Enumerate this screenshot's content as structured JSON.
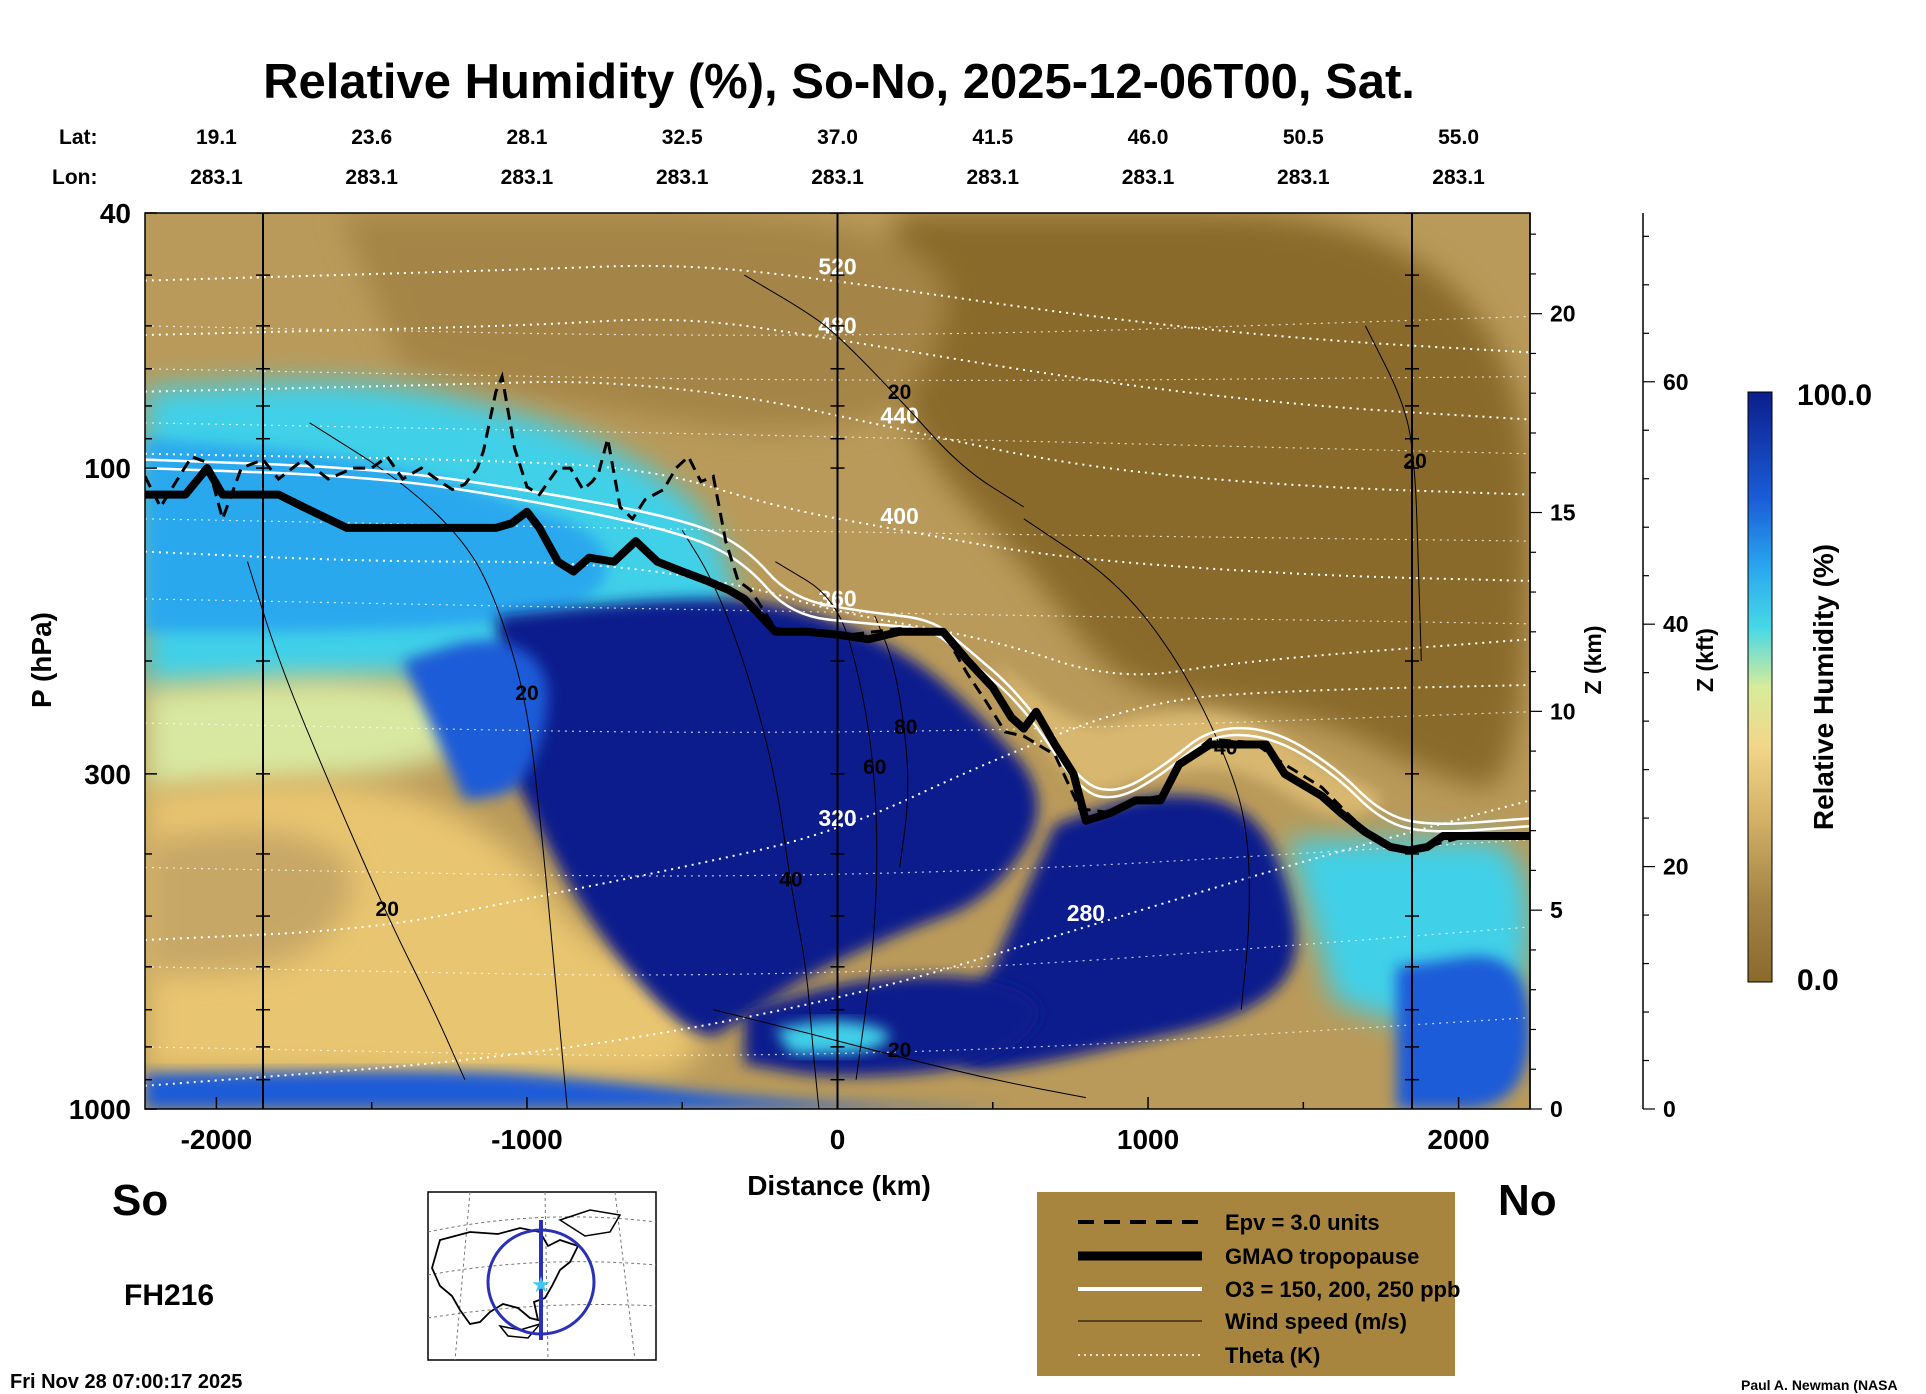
{
  "chart_data": {
    "type": "heatmap",
    "title": "Relative Humidity (%), So-No, 2025-12-06T00, Sat.",
    "xlabel": "Distance (km)",
    "ylabel": "P (hPa)",
    "ylabel_right_km": "Z (km)",
    "ylabel_right_kft": "Z (kft)",
    "xlim": [
      -2230,
      2230
    ],
    "ylim": [
      1000,
      40
    ],
    "y_scale": "log",
    "x_ticks": [
      -2000,
      -1000,
      0,
      1000,
      2000
    ],
    "y_ticks": [
      40,
      100,
      300,
      1000
    ],
    "z_km_ticks": [
      0,
      5,
      10,
      15,
      20
    ],
    "z_kft_ticks": [
      0,
      20,
      40,
      60
    ],
    "lat_label": "Lat:",
    "lon_label": "Lon:",
    "lat_lon_stations": [
      {
        "x": -2000,
        "lat": "19.1",
        "lon": "283.1"
      },
      {
        "x": -1500,
        "lat": "23.6",
        "lon": "283.1"
      },
      {
        "x": -1000,
        "lat": "28.1",
        "lon": "283.1"
      },
      {
        "x": -500,
        "lat": "32.5",
        "lon": "283.1"
      },
      {
        "x": 0,
        "lat": "37.0",
        "lon": "283.1"
      },
      {
        "x": 500,
        "lat": "41.5",
        "lon": "283.1"
      },
      {
        "x": 1000,
        "lat": "46.0",
        "lon": "283.1"
      },
      {
        "x": 1500,
        "lat": "50.5",
        "lon": "283.1"
      },
      {
        "x": 2000,
        "lat": "55.0",
        "lon": "283.1"
      }
    ],
    "vertical_markers_km": [
      -1850,
      0,
      1850
    ],
    "colorbar": {
      "label": "Relative Humidity (%)",
      "min": "0.0",
      "max": "100.0",
      "min_value": 0,
      "max_value": 100
    },
    "colors": {
      "dry": "#8a6a2c",
      "tan": "#b99a5a",
      "mid": "#e8c570",
      "pale": "#d8e8a0",
      "cyan": "#40d0e8",
      "blue": "#1a5cd8",
      "navy": "#0c1e8c",
      "legend_bg": "#a8853e",
      "ring": "#2a30b8"
    },
    "tropopause": [
      [
        -2230,
        110
      ],
      [
        -2100,
        110
      ],
      [
        -2030,
        100
      ],
      [
        -1980,
        110
      ],
      [
        -1800,
        110
      ],
      [
        -1720,
        115
      ],
      [
        -1580,
        124
      ],
      [
        -1100,
        124
      ],
      [
        -1050,
        122
      ],
      [
        -1000,
        117
      ],
      [
        -960,
        124
      ],
      [
        -900,
        140
      ],
      [
        -850,
        145
      ],
      [
        -800,
        138
      ],
      [
        -720,
        140
      ],
      [
        -650,
        130
      ],
      [
        -580,
        140
      ],
      [
        -500,
        145
      ],
      [
        -420,
        150
      ],
      [
        -350,
        155
      ],
      [
        -300,
        160
      ],
      [
        -200,
        180
      ],
      [
        -100,
        180
      ],
      [
        0,
        182
      ],
      [
        100,
        185
      ],
      [
        200,
        180
      ],
      [
        340,
        180
      ],
      [
        420,
        200
      ],
      [
        500,
        220
      ],
      [
        560,
        245
      ],
      [
        600,
        255
      ],
      [
        640,
        240
      ],
      [
        700,
        270
      ],
      [
        760,
        300
      ],
      [
        800,
        355
      ],
      [
        880,
        345
      ],
      [
        960,
        330
      ],
      [
        1040,
        330
      ],
      [
        1100,
        290
      ],
      [
        1200,
        270
      ],
      [
        1300,
        270
      ],
      [
        1380,
        270
      ],
      [
        1440,
        300
      ],
      [
        1560,
        325
      ],
      [
        1620,
        345
      ],
      [
        1700,
        370
      ],
      [
        1780,
        390
      ],
      [
        1840,
        395
      ],
      [
        1900,
        390
      ],
      [
        1950,
        375
      ],
      [
        2100,
        375
      ],
      [
        2230,
        375
      ]
    ],
    "epv_line": [
      [
        -2230,
        103
      ],
      [
        -2180,
        115
      ],
      [
        -2130,
        105
      ],
      [
        -2080,
        96
      ],
      [
        -2030,
        98
      ],
      [
        -1980,
        120
      ],
      [
        -1920,
        100
      ],
      [
        -1850,
        97
      ],
      [
        -1800,
        104
      ],
      [
        -1720,
        97
      ],
      [
        -1640,
        104
      ],
      [
        -1560,
        100
      ],
      [
        -1500,
        100
      ],
      [
        -1450,
        96
      ],
      [
        -1400,
        104
      ],
      [
        -1340,
        100
      ],
      [
        -1280,
        105
      ],
      [
        -1240,
        108
      ],
      [
        -1200,
        106
      ],
      [
        -1160,
        100
      ],
      [
        -1140,
        94
      ],
      [
        -1100,
        76
      ],
      [
        -1080,
        72
      ],
      [
        -1040,
        93
      ],
      [
        -1000,
        107
      ],
      [
        -960,
        110
      ],
      [
        -900,
        100
      ],
      [
        -860,
        100
      ],
      [
        -820,
        108
      ],
      [
        -790,
        105
      ],
      [
        -770,
        102
      ],
      [
        -740,
        90
      ],
      [
        -700,
        115
      ],
      [
        -660,
        120
      ],
      [
        -620,
        112
      ],
      [
        -560,
        108
      ],
      [
        -520,
        100
      ],
      [
        -480,
        96
      ],
      [
        -440,
        105
      ],
      [
        -400,
        103
      ],
      [
        -360,
        130
      ],
      [
        -320,
        150
      ],
      [
        -280,
        155
      ],
      [
        -200,
        178
      ],
      [
        0,
        183
      ],
      [
        200,
        178
      ],
      [
        340,
        180
      ],
      [
        420,
        210
      ],
      [
        480,
        232
      ],
      [
        540,
        258
      ],
      [
        600,
        262
      ],
      [
        700,
        280
      ],
      [
        780,
        340
      ],
      [
        880,
        345
      ],
      [
        960,
        330
      ],
      [
        1040,
        325
      ],
      [
        1100,
        290
      ],
      [
        1200,
        265
      ],
      [
        1340,
        268
      ],
      [
        1440,
        290
      ],
      [
        1560,
        315
      ],
      [
        1640,
        345
      ],
      [
        1720,
        375
      ],
      [
        1800,
        390
      ],
      [
        1880,
        392
      ],
      [
        2000,
        378
      ],
      [
        2230,
        378
      ]
    ],
    "theta_lines": [
      {
        "label": "280",
        "pts": [
          [
            -2230,
            920
          ],
          [
            -1000,
            830
          ],
          [
            0,
            680
          ],
          [
            800,
            520
          ],
          [
            1500,
            410
          ],
          [
            2230,
            330
          ]
        ]
      },
      {
        "label": "320",
        "pts": [
          [
            -2230,
            545
          ],
          [
            -1500,
            525
          ],
          [
            -1000,
            470
          ],
          [
            -500,
            420
          ],
          [
            0,
            370
          ],
          [
            500,
            285
          ],
          [
            1000,
            230
          ],
          [
            1500,
            222
          ],
          [
            2230,
            218
          ]
        ]
      },
      {
        "label": "360",
        "pts": [
          [
            -2230,
            135
          ],
          [
            -1500,
            140
          ],
          [
            -800,
            140
          ],
          [
            -300,
            152
          ],
          [
            0,
            168
          ],
          [
            500,
            185
          ],
          [
            900,
            215
          ],
          [
            1300,
            200
          ],
          [
            2230,
            185
          ]
        ]
      },
      {
        "label": "400",
        "pts": [
          [
            -2230,
            95
          ],
          [
            -1200,
            97
          ],
          [
            -600,
            100
          ],
          [
            -200,
            115
          ],
          [
            200,
            125
          ],
          [
            700,
            138
          ],
          [
            1500,
            147
          ],
          [
            2230,
            150
          ]
        ]
      },
      {
        "label": "440",
        "pts": [
          [
            -2230,
            76
          ],
          [
            -1200,
            74
          ],
          [
            -800,
            73
          ],
          [
            -300,
            77
          ],
          [
            200,
            87
          ],
          [
            800,
            100
          ],
          [
            1500,
            107
          ],
          [
            2230,
            110
          ]
        ]
      },
      {
        "label": "480",
        "pts": [
          [
            -2230,
            62
          ],
          [
            -1000,
            60
          ],
          [
            -500,
            58
          ],
          [
            0,
            63
          ],
          [
            800,
            73
          ],
          [
            1500,
            80
          ],
          [
            2230,
            84
          ]
        ]
      },
      {
        "label": "520",
        "pts": [
          [
            -2230,
            51
          ],
          [
            -1000,
            49
          ],
          [
            -500,
            48
          ],
          [
            0,
            51
          ],
          [
            800,
            58
          ],
          [
            1500,
            63
          ],
          [
            2230,
            66
          ]
        ]
      }
    ],
    "wind_contours": [
      {
        "label": "20",
        "pts": [
          [
            -1700,
            85
          ],
          [
            -1400,
            105
          ],
          [
            -1200,
            130
          ],
          [
            -1100,
            160
          ],
          [
            -1000,
            230
          ],
          [
            -950,
            380
          ],
          [
            -900,
            700
          ],
          [
            -870,
            1000
          ]
        ]
      },
      {
        "label": "20",
        "pts": [
          [
            -300,
            50
          ],
          [
            -100,
            57
          ],
          [
            0,
            62
          ],
          [
            200,
            78
          ],
          [
            400,
            100
          ],
          [
            600,
            115
          ]
        ]
      },
      {
        "label": "40",
        "pts": [
          [
            -500,
            125
          ],
          [
            -400,
            150
          ],
          [
            -300,
            200
          ],
          [
            -200,
            300
          ],
          [
            -150,
            450
          ],
          [
            -100,
            600
          ],
          [
            -80,
            800
          ],
          [
            -60,
            1000
          ]
        ]
      },
      {
        "label": "60",
        "pts": [
          [
            -200,
            140
          ],
          [
            0,
            160
          ],
          [
            80,
            220
          ],
          [
            120,
            300
          ],
          [
            130,
            420
          ],
          [
            110,
            600
          ],
          [
            60,
            900
          ]
        ]
      },
      {
        "label": "80",
        "pts": [
          [
            120,
            170
          ],
          [
            180,
            200
          ],
          [
            220,
            260
          ],
          [
            230,
            330
          ],
          [
            200,
            420
          ]
        ]
      },
      {
        "label": "40",
        "pts": [
          [
            600,
            120
          ],
          [
            900,
            150
          ],
          [
            1100,
            200
          ],
          [
            1250,
            280
          ],
          [
            1320,
            360
          ],
          [
            1330,
            500
          ],
          [
            1300,
            700
          ]
        ]
      },
      {
        "label": "20",
        "pts": [
          [
            -1900,
            140
          ],
          [
            -1800,
            200
          ],
          [
            -1650,
            300
          ],
          [
            -1450,
            500
          ],
          [
            -1300,
            700
          ],
          [
            -1200,
            900
          ]
        ]
      },
      {
        "label": "20",
        "pts": [
          [
            1700,
            60
          ],
          [
            1830,
            80
          ],
          [
            1860,
            100
          ],
          [
            1870,
            140
          ],
          [
            1880,
            200
          ]
        ]
      },
      {
        "label": "20",
        "pts": [
          [
            -400,
            700
          ],
          [
            -100,
            760
          ],
          [
            200,
            830
          ],
          [
            500,
            900
          ],
          [
            800,
            960
          ]
        ]
      }
    ],
    "ozone_band": [
      {
        "pts": [
          [
            -2230,
            100
          ],
          [
            -1500,
            103
          ],
          [
            -1000,
            112
          ],
          [
            -500,
            126
          ],
          [
            -300,
            140
          ],
          [
            -150,
            170
          ],
          [
            100,
            175
          ],
          [
            300,
            178
          ],
          [
            400,
            195
          ],
          [
            600,
            235
          ],
          [
            780,
            320
          ],
          [
            900,
            330
          ],
          [
            1050,
            300
          ],
          [
            1200,
            260
          ],
          [
            1400,
            262
          ],
          [
            1600,
            300
          ],
          [
            1750,
            355
          ],
          [
            1900,
            372
          ],
          [
            2230,
            362
          ]
        ]
      },
      {
        "pts": [
          [
            -2230,
            97
          ],
          [
            -1500,
            100
          ],
          [
            -1000,
            108
          ],
          [
            -500,
            120
          ],
          [
            -300,
            132
          ],
          [
            -150,
            160
          ],
          [
            100,
            168
          ],
          [
            300,
            172
          ],
          [
            400,
            188
          ],
          [
            600,
            228
          ],
          [
            780,
            310
          ],
          [
            900,
            322
          ],
          [
            1050,
            292
          ],
          [
            1200,
            254
          ],
          [
            1400,
            255
          ],
          [
            1600,
            292
          ],
          [
            1750,
            345
          ],
          [
            1900,
            362
          ],
          [
            2230,
            352
          ]
        ]
      }
    ]
  },
  "labels": {
    "so": "So",
    "no": "No",
    "fh": "FH216",
    "timestamp": "Fri Nov 28 07:00:17 2025",
    "credit": "Paul A. Newman (NASA"
  },
  "legend": {
    "items": [
      {
        "label": "Epv = 3.0 units",
        "style": "dashed"
      },
      {
        "label": "GMAO tropopause",
        "style": "thick"
      },
      {
        "label": "O3 = 150, 200, 250 ppb",
        "style": "white"
      },
      {
        "label": "Wind speed (m/s)",
        "style": "thin"
      },
      {
        "label": "Theta (K)",
        "style": "dotted"
      }
    ]
  }
}
